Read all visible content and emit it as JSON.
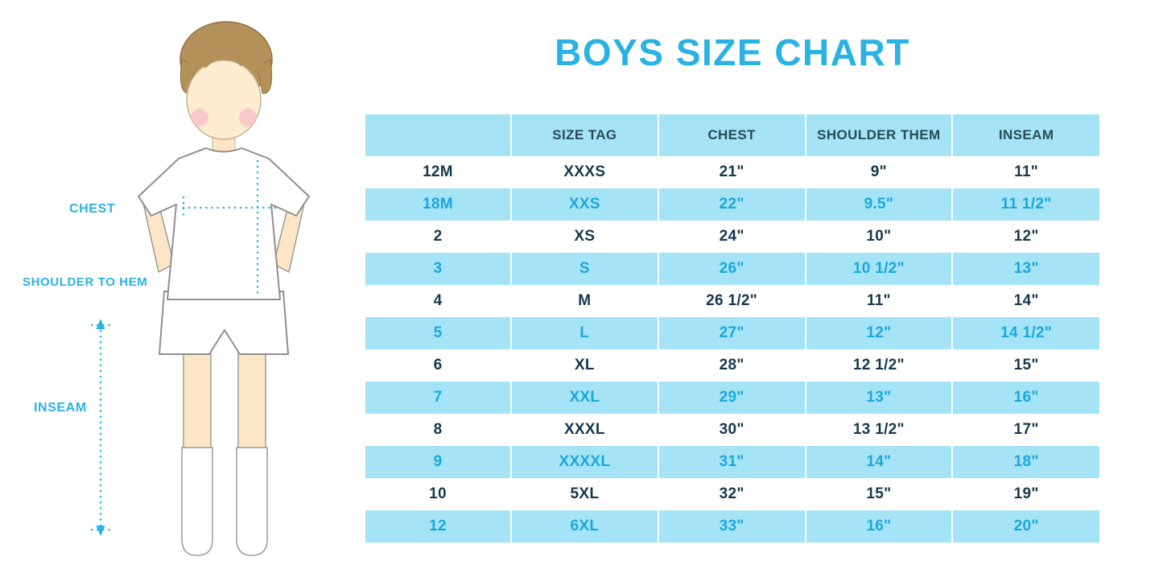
{
  "title": "BOYS SIZE CHART",
  "colors": {
    "accent_cyan": "#29b2e3",
    "row_blue": "#a4e4f6",
    "dark_text": "#16384c",
    "blue_row_text": "#1ba7dc"
  },
  "figure": {
    "labels": {
      "chest": "CHEST",
      "shoulder_to_hem": "SHOULDER TO HEM",
      "inseam": "INSEAM"
    }
  },
  "chart_data": {
    "type": "table",
    "title": "BOYS SIZE CHART",
    "columns": [
      "",
      "SIZE TAG",
      "CHEST",
      "SHOULDER THEM",
      "INSEAM"
    ],
    "rows": [
      [
        "12M",
        "XXXS",
        "21\"",
        "9\"",
        "11\""
      ],
      [
        "18M",
        "XXS",
        "22\"",
        "9.5\"",
        "11 1/2\""
      ],
      [
        "2",
        "XS",
        "24\"",
        "10\"",
        "12\""
      ],
      [
        "3",
        "S",
        "26\"",
        "10 1/2\"",
        "13\""
      ],
      [
        "4",
        "M",
        "26 1/2\"",
        "11\"",
        "14\""
      ],
      [
        "5",
        "L",
        "27\"",
        "12\"",
        "14 1/2\""
      ],
      [
        "6",
        "XL",
        "28\"",
        "12 1/2\"",
        "15\""
      ],
      [
        "7",
        "XXL",
        "29\"",
        "13\"",
        "16\""
      ],
      [
        "8",
        "XXXL",
        "30\"",
        "13 1/2\"",
        "17\""
      ],
      [
        "9",
        "XXXXL",
        "31\"",
        "14\"",
        "18\""
      ],
      [
        "10",
        "5XL",
        "32\"",
        "15\"",
        "19\""
      ],
      [
        "12",
        "6XL",
        "33\"",
        "16\"",
        "20\""
      ]
    ]
  }
}
